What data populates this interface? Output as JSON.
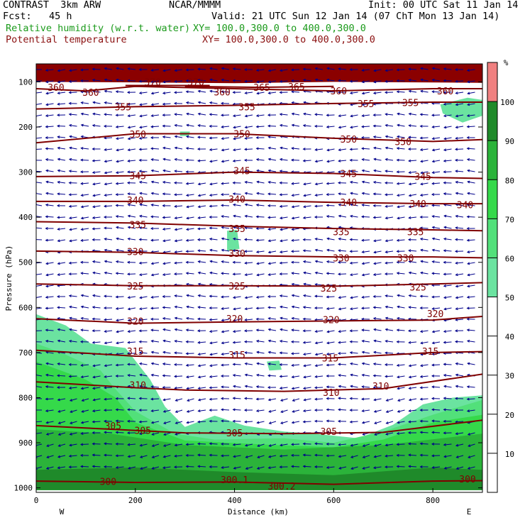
{
  "header": {
    "model": "CONTRAST  3km ARW",
    "org": "NCAR/MMMM",
    "init": "Init: 00 UTC Sat 11 Jan 14",
    "fcst": "Fcst:   45 h",
    "valid": "Valid: 21 UTC Sun 12 Jan 14 (07 ChT Mon 13 Jan 14)",
    "field1_label": "Relative humidity (w.r.t. water)",
    "field1_xy": "XY= 100.0,300.0 to 400.0,300.0",
    "field2_label": "Potential temperature",
    "field2_xy": "XY= 100.0,300.0 to 400.0,300.0"
  },
  "colors": {
    "rh_10": "#8b0000",
    "rh_90": "#1f8a2a",
    "rh_80": "#2bb33a",
    "rh_70": "#35d94a",
    "rh_60": "#52e07a",
    "rh_50": "#6be3a0",
    "theta": "#800000",
    "wind": "#00008b"
  },
  "chart_data": {
    "type": "cross-section",
    "title": "Relative humidity (w.r.t. water) and Potential temperature",
    "xlabel": "Distance (km)",
    "ylabel": "Pressure (hPa)",
    "xlim": [
      0,
      900
    ],
    "ylim": [
      1010,
      60
    ],
    "x_ticks": [
      0,
      200,
      400,
      600,
      800
    ],
    "y_ticks": [
      100,
      200,
      300,
      400,
      500,
      600,
      700,
      800,
      900,
      1000
    ],
    "x_end_labels": {
      "left": "W",
      "right": "E"
    },
    "colorbar": {
      "unit": "%",
      "levels": [
        10,
        20,
        30,
        40,
        50,
        60,
        70,
        80,
        90,
        100
      ],
      "filled_colors": [
        {
          "from": 50,
          "to": 60,
          "color": "#6be3a0"
        },
        {
          "from": 60,
          "to": 70,
          "color": "#52e07a"
        },
        {
          "from": 70,
          "to": 80,
          "color": "#35d94a"
        },
        {
          "from": 80,
          "to": 90,
          "color": "#2bb33a"
        },
        {
          "from": 90,
          "to": 100,
          "color": "#1f8a2a"
        },
        {
          "from": 100,
          "to": 110,
          "color": "#f08080"
        }
      ]
    },
    "theta_contours": [
      {
        "value": 300,
        "points": [
          [
            0,
            985
          ],
          [
            200,
            988
          ],
          [
            400,
            987
          ],
          [
            600,
            992
          ],
          [
            800,
            985
          ],
          [
            900,
            984
          ]
        ],
        "labels": [
          [
            145,
            986,
            "300"
          ],
          [
            400,
            982,
            "300.1"
          ],
          [
            495,
            996,
            "300.2"
          ],
          [
            870,
            980,
            "300"
          ]
        ]
      },
      {
        "value": 305,
        "points": [
          [
            0,
            862
          ],
          [
            150,
            870
          ],
          [
            300,
            878
          ],
          [
            500,
            880
          ],
          [
            700,
            877
          ],
          [
            900,
            850
          ]
        ],
        "labels": [
          [
            155,
            862,
            "305"
          ],
          [
            215,
            872,
            "305"
          ],
          [
            400,
            878,
            "305"
          ],
          [
            590,
            875,
            "305"
          ]
        ]
      },
      {
        "value": 310,
        "points": [
          [
            0,
            765
          ],
          [
            200,
            778
          ],
          [
            300,
            783
          ],
          [
            500,
            786
          ],
          [
            700,
            780
          ],
          [
            900,
            748
          ]
        ],
        "labels": [
          [
            205,
            772,
            "310"
          ],
          [
            595,
            788,
            "310"
          ],
          [
            695,
            774,
            "310"
          ]
        ]
      },
      {
        "value": 315,
        "points": [
          [
            0,
            695
          ],
          [
            200,
            708
          ],
          [
            400,
            712
          ],
          [
            600,
            712
          ],
          [
            800,
            700
          ],
          [
            900,
            698
          ]
        ],
        "labels": [
          [
            200,
            697,
            "315"
          ],
          [
            405,
            705,
            "315"
          ],
          [
            593,
            712,
            "315"
          ],
          [
            795,
            697,
            "315"
          ]
        ]
      },
      {
        "value": 320,
        "points": [
          [
            0,
            625
          ],
          [
            200,
            635
          ],
          [
            400,
            632
          ],
          [
            600,
            630
          ],
          [
            800,
            628
          ],
          [
            900,
            620
          ]
        ],
        "labels": [
          [
            200,
            630,
            "320"
          ],
          [
            400,
            625,
            "320"
          ],
          [
            595,
            627,
            "320"
          ],
          [
            805,
            614,
            "320"
          ]
        ]
      },
      {
        "value": 325,
        "points": [
          [
            0,
            548
          ],
          [
            200,
            552
          ],
          [
            400,
            552
          ],
          [
            600,
            553
          ],
          [
            800,
            548
          ],
          [
            900,
            545
          ]
        ],
        "labels": [
          [
            200,
            552,
            "325"
          ],
          [
            405,
            552,
            "325"
          ],
          [
            590,
            557,
            "325"
          ],
          [
            770,
            555,
            "325"
          ]
        ]
      },
      {
        "value": 330,
        "points": [
          [
            0,
            475
          ],
          [
            200,
            478
          ],
          [
            400,
            485
          ],
          [
            600,
            488
          ],
          [
            800,
            488
          ],
          [
            900,
            490
          ]
        ],
        "labels": [
          [
            200,
            476,
            "330"
          ],
          [
            405,
            480,
            "330"
          ],
          [
            615,
            490,
            "330"
          ],
          [
            745,
            490,
            "330"
          ]
        ]
      },
      {
        "value": 335,
        "points": [
          [
            0,
            410
          ],
          [
            200,
            413
          ],
          [
            400,
            420
          ],
          [
            600,
            425
          ],
          [
            800,
            428
          ],
          [
            900,
            430
          ]
        ],
        "labels": [
          [
            205,
            416,
            "335"
          ],
          [
            405,
            425,
            "335"
          ],
          [
            615,
            432,
            "335"
          ],
          [
            765,
            432,
            "335"
          ]
        ]
      },
      {
        "value": 340,
        "points": [
          [
            0,
            365
          ],
          [
            200,
            365
          ],
          [
            400,
            362
          ],
          [
            600,
            367
          ],
          [
            800,
            370
          ],
          [
            900,
            370
          ]
        ],
        "labels": [
          [
            200,
            362,
            "340"
          ],
          [
            405,
            360,
            "340"
          ],
          [
            630,
            367,
            "340"
          ],
          [
            770,
            370,
            "340"
          ],
          [
            865,
            372,
            "340"
          ]
        ]
      },
      {
        "value": 345,
        "points": [
          [
            0,
            310
          ],
          [
            200,
            308
          ],
          [
            400,
            300
          ],
          [
            600,
            303
          ],
          [
            800,
            312
          ],
          [
            900,
            314
          ]
        ],
        "labels": [
          [
            205,
            308,
            "345"
          ],
          [
            415,
            297,
            "345"
          ],
          [
            630,
            303,
            "345"
          ],
          [
            780,
            309,
            "345"
          ]
        ]
      },
      {
        "value": 350,
        "points": [
          [
            0,
            235
          ],
          [
            200,
            215
          ],
          [
            400,
            215
          ],
          [
            600,
            225
          ],
          [
            800,
            232
          ],
          [
            900,
            228
          ]
        ],
        "labels": [
          [
            205,
            216,
            "350"
          ],
          [
            415,
            215,
            "350"
          ],
          [
            630,
            227,
            "350"
          ],
          [
            740,
            232,
            "350"
          ]
        ]
      },
      {
        "value": 355,
        "points": [
          [
            0,
            160
          ],
          [
            200,
            155
          ],
          [
            400,
            152
          ],
          [
            600,
            148
          ],
          [
            800,
            145
          ],
          [
            900,
            145
          ]
        ],
        "labels": [
          [
            175,
            155,
            "355"
          ],
          [
            425,
            155,
            "355"
          ],
          [
            665,
            148,
            "355"
          ],
          [
            755,
            146,
            "355"
          ]
        ]
      },
      {
        "value": 360,
        "points": [
          [
            0,
            115
          ],
          [
            100,
            120
          ],
          [
            200,
            110
          ],
          [
            400,
            115
          ],
          [
            600,
            120
          ],
          [
            800,
            115
          ],
          [
            900,
            115
          ]
        ],
        "labels": [
          [
            40,
            112,
            "360"
          ],
          [
            110,
            123,
            "360"
          ],
          [
            375,
            122,
            "360"
          ],
          [
            610,
            120,
            "360"
          ],
          [
            825,
            120,
            "360"
          ]
        ]
      },
      {
        "value": 365,
        "points": [
          [
            300,
            110
          ],
          [
            450,
            112
          ],
          [
            600,
            110
          ]
        ],
        "labels": [
          [
            455,
            112,
            "365"
          ],
          [
            525,
            110,
            "365"
          ]
        ]
      },
      {
        "value": 370,
        "points": [
          [
            180,
            108
          ],
          [
            350,
            108
          ]
        ],
        "labels": [
          [
            235,
            100,
            "370"
          ],
          [
            322,
            100,
            "370"
          ]
        ]
      }
    ],
    "rh_regions": [
      {
        "level": 50,
        "color": "#6be3a0",
        "outline": [
          [
            0,
            615
          ],
          [
            60,
            640
          ],
          [
            110,
            680
          ],
          [
            180,
            690
          ],
          [
            230,
            760
          ],
          [
            260,
            820
          ],
          [
            300,
            865
          ],
          [
            360,
            840
          ],
          [
            420,
            862
          ],
          [
            500,
            875
          ],
          [
            560,
            880
          ],
          [
            650,
            890
          ],
          [
            720,
            860
          ],
          [
            780,
            815
          ],
          [
            840,
            800
          ],
          [
            900,
            795
          ],
          [
            900,
            1005
          ],
          [
            0,
            1005
          ]
        ]
      },
      {
        "level": 60,
        "color": "#52e07a",
        "outline": [
          [
            0,
            680
          ],
          [
            50,
            700
          ],
          [
            130,
            740
          ],
          [
            155,
            775
          ],
          [
            200,
            830
          ],
          [
            280,
            880
          ],
          [
            360,
            893
          ],
          [
            500,
            890
          ],
          [
            600,
            900
          ],
          [
            700,
            875
          ],
          [
            800,
            838
          ],
          [
            900,
            805
          ],
          [
            900,
            1005
          ],
          [
            0,
            1005
          ]
        ]
      },
      {
        "level": 70,
        "color": "#35d94a",
        "outline": [
          [
            0,
            720
          ],
          [
            100,
            760
          ],
          [
            160,
            800
          ],
          [
            200,
            855
          ],
          [
            300,
            895
          ],
          [
            480,
            905
          ],
          [
            600,
            910
          ],
          [
            700,
            893
          ],
          [
            800,
            855
          ],
          [
            900,
            838
          ],
          [
            900,
            1005
          ],
          [
            0,
            1005
          ]
        ]
      },
      {
        "level": 80,
        "color": "#2bb33a",
        "outline": [
          [
            0,
            870
          ],
          [
            150,
            880
          ],
          [
            300,
            905
          ],
          [
            500,
            915
          ],
          [
            700,
            905
          ],
          [
            900,
            880
          ],
          [
            900,
            1005
          ],
          [
            0,
            1005
          ]
        ]
      },
      {
        "level": 90,
        "color": "#1f8a2a",
        "outline": [
          [
            0,
            960
          ],
          [
            200,
            955
          ],
          [
            400,
            965
          ],
          [
            600,
            972
          ],
          [
            800,
            955
          ],
          [
            900,
            960
          ],
          [
            900,
            1005
          ],
          [
            0,
            1005
          ]
        ]
      },
      {
        "level": 50,
        "color": "#6be3a0",
        "outline": [
          [
            815,
            150
          ],
          [
            870,
            135
          ],
          [
            900,
            140
          ],
          [
            900,
            175
          ],
          [
            860,
            190
          ],
          [
            820,
            170
          ]
        ]
      },
      {
        "level": 50,
        "color": "#6be3a0",
        "outline": [
          [
            385,
            430
          ],
          [
            405,
            428
          ],
          [
            410,
            470
          ],
          [
            385,
            475
          ]
        ]
      },
      {
        "level": 50,
        "color": "#6be3a0",
        "outline": [
          [
            465,
            720
          ],
          [
            490,
            718
          ],
          [
            495,
            738
          ],
          [
            470,
            740
          ]
        ]
      },
      {
        "level": 50,
        "color": "#6be3a0",
        "outline": [
          [
            290,
            210
          ],
          [
            310,
            210
          ],
          [
            308,
            220
          ],
          [
            290,
            220
          ]
        ]
      },
      {
        "level": 100,
        "color": "#8b0000",
        "outline": [
          [
            0,
            60
          ],
          [
            900,
            60
          ],
          [
            900,
            102
          ],
          [
            600,
            100
          ],
          [
            400,
            103
          ],
          [
            200,
            101
          ],
          [
            0,
            100
          ]
        ]
      }
    ]
  }
}
